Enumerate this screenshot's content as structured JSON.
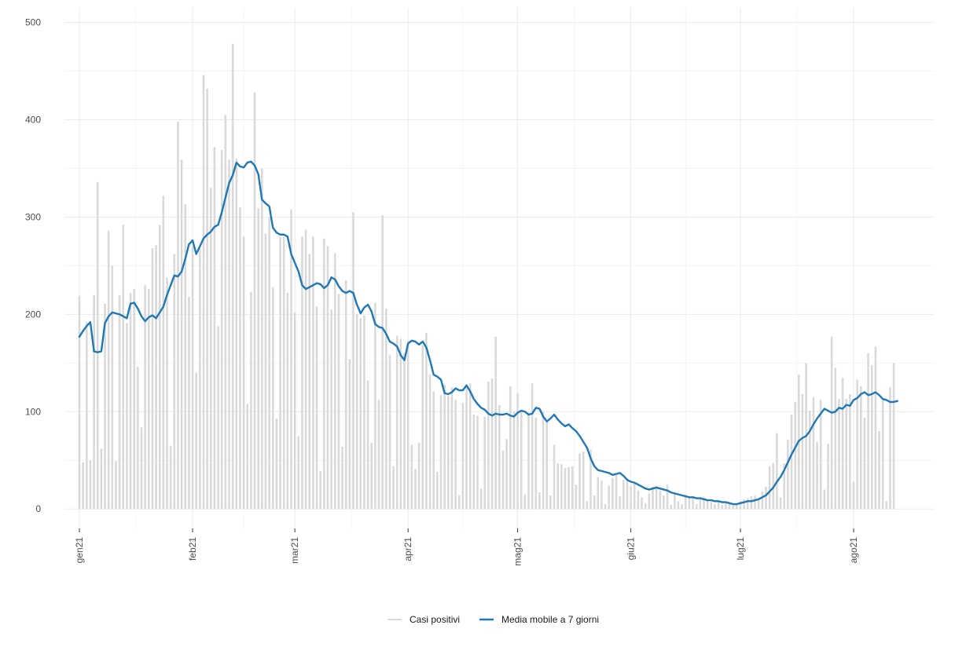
{
  "chart_data": {
    "type": "bar",
    "title": "",
    "xlabel": "",
    "ylabel": "",
    "x_range": [
      "2021-01-01",
      "2021-08-19"
    ],
    "ylim": [
      -20,
      515
    ],
    "grid": true,
    "legend_position": "bottom",
    "y_ticks": [
      0,
      100,
      200,
      300,
      400,
      500
    ],
    "x_ticks": [
      {
        "date": "2021-01-01",
        "label": "gen21"
      },
      {
        "date": "2021-02-01",
        "label": "feb21"
      },
      {
        "date": "2021-03-01",
        "label": "mar21"
      },
      {
        "date": "2021-04-01",
        "label": "apr21"
      },
      {
        "date": "2021-05-01",
        "label": "mag21"
      },
      {
        "date": "2021-06-01",
        "label": "giu21"
      },
      {
        "date": "2021-07-01",
        "label": "lug21"
      },
      {
        "date": "2021-08-01",
        "label": "ago21"
      }
    ],
    "series": [
      {
        "name": "Casi positivi",
        "type": "bar",
        "color": "#d9d9d9",
        "start_date": "2021-01-01",
        "values": [
          219,
          48,
          192,
          50,
          220,
          336,
          62,
          211,
          286,
          250,
          49,
          220,
          292,
          191,
          222,
          226,
          146,
          84,
          230,
          226,
          268,
          271,
          292,
          322,
          238,
          65,
          262,
          398,
          359,
          313,
          218,
          270,
          140,
          268,
          446,
          432,
          330,
          372,
          188,
          369,
          405,
          359,
          478,
          360,
          310,
          280,
          108,
          223,
          428,
          309,
          350,
          283,
          300,
          228,
          93,
          280,
          280,
          222,
          308,
          202,
          75,
          280,
          287,
          262,
          280,
          208,
          39,
          278,
          270,
          205,
          263,
          221,
          64,
          235,
          154,
          305,
          200,
          196,
          199,
          132,
          68,
          212,
          112,
          302,
          206,
          158,
          44,
          178,
          175,
          160,
          173,
          66,
          41,
          68,
          168,
          181,
          138,
          121,
          38,
          117,
          128,
          116,
          125,
          112,
          14,
          109,
          125,
          129,
          97,
          96,
          21,
          95,
          131,
          134,
          177,
          107,
          60,
          72,
          126,
          100,
          119,
          100,
          15,
          99,
          129,
          94,
          17,
          100,
          90,
          14,
          66,
          47,
          46,
          42,
          43,
          44,
          25,
          57,
          59,
          8,
          61,
          14,
          33,
          29,
          5,
          24,
          32,
          36,
          13,
          30,
          31,
          23,
          28,
          19,
          12,
          6,
          16,
          23,
          24,
          19,
          14,
          25,
          4,
          17,
          8,
          5,
          15,
          11,
          13,
          5,
          10,
          12,
          9,
          7,
          5,
          9,
          4,
          7,
          6,
          4,
          5,
          8,
          10,
          11,
          13,
          14,
          9,
          18,
          23,
          44,
          47,
          78,
          12,
          47,
          71,
          97,
          110,
          138,
          118,
          150,
          101,
          115,
          69,
          112,
          20,
          67,
          177,
          145,
          113,
          135,
          113,
          118,
          28,
          133,
          126,
          94,
          160,
          148,
          167,
          80,
          112,
          8,
          125,
          150
        ]
      },
      {
        "name": "Media mobile a 7 giorni",
        "type": "line",
        "color": "#1f78b4",
        "start_date": "2021-01-01",
        "values": [
          177,
          183,
          188,
          192,
          162,
          161,
          162,
          191,
          198,
          202,
          201,
          200,
          198,
          196,
          211,
          212,
          206,
          198,
          193,
          197,
          199,
          196,
          202,
          208,
          220,
          230,
          240,
          239,
          244,
          257,
          272,
          276,
          262,
          270,
          278,
          282,
          285,
          290,
          292,
          305,
          320,
          335,
          343,
          356,
          352,
          351,
          356,
          357,
          353,
          344,
          318,
          314,
          311,
          289,
          284,
          282,
          282,
          280,
          262,
          253,
          244,
          230,
          226,
          228,
          230,
          232,
          231,
          227,
          230,
          238,
          236,
          229,
          224,
          222,
          224,
          222,
          210,
          201,
          207,
          210,
          203,
          190,
          187,
          186,
          180,
          172,
          170,
          167,
          158,
          153,
          170,
          173,
          172,
          169,
          172,
          166,
          153,
          138,
          136,
          133,
          119,
          118,
          120,
          124,
          122,
          122,
          127,
          121,
          113,
          108,
          104,
          102,
          98,
          96,
          98,
          97,
          97,
          98,
          96,
          95,
          99,
          101,
          100,
          97,
          98,
          104,
          103,
          95,
          90,
          93,
          97,
          92,
          88,
          85,
          87,
          83,
          80,
          75,
          69,
          63,
          52,
          44,
          40,
          39,
          38,
          37,
          35,
          36,
          37,
          34,
          30,
          28,
          27,
          25,
          23,
          21,
          20,
          21,
          22,
          21,
          20,
          19,
          17,
          16,
          15,
          14,
          13,
          12,
          12,
          11,
          11,
          10,
          9,
          9,
          8,
          8,
          7,
          7,
          6,
          5,
          5,
          6,
          7,
          8,
          8,
          9,
          10,
          12,
          14,
          18,
          22,
          28,
          33,
          40,
          48,
          56,
          63,
          70,
          73,
          75,
          80,
          87,
          93,
          98,
          103,
          101,
          99,
          100,
          104,
          103,
          107,
          106,
          112,
          114,
          118,
          120,
          117,
          118,
          120,
          117,
          113,
          112,
          110,
          110,
          111
        ]
      }
    ]
  }
}
